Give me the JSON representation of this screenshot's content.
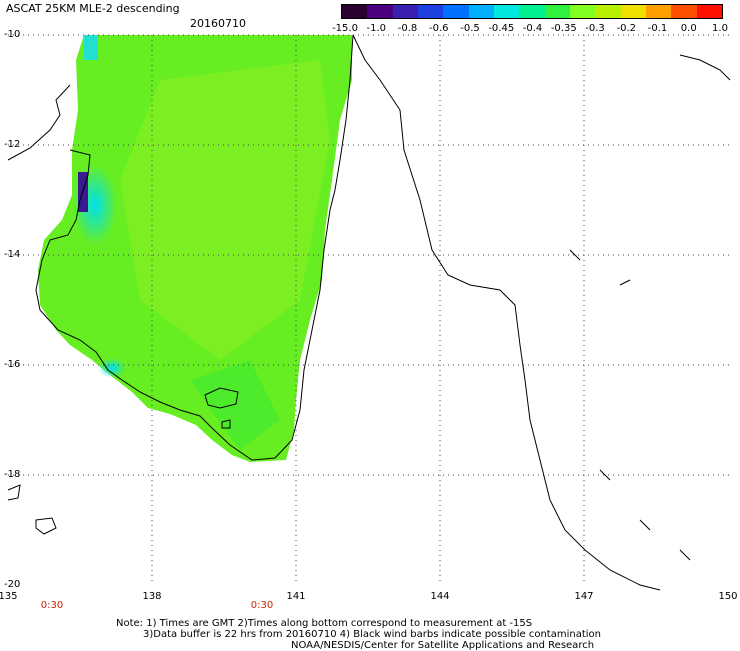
{
  "header": {
    "title": "ASCAT 25KM MLE-2 descending",
    "date": "20160710"
  },
  "colorbar": {
    "labels": [
      "-15.0",
      "-1.0",
      "-0.8",
      "-0.6",
      "-0.5",
      "-0.45",
      "-0.4",
      "-0.35",
      "-0.3",
      "-0.2",
      "-0.1",
      "0.0",
      "1.0"
    ],
    "colors": [
      "#2a0030",
      "#4b0082",
      "#3a1fb0",
      "#1e40e0",
      "#0070ff",
      "#00b0ff",
      "#00e8e0",
      "#00f090",
      "#30f040",
      "#80ff20",
      "#b8f000",
      "#f0e000",
      "#ffa000",
      "#ff5000",
      "#ff1000"
    ]
  },
  "map": {
    "lat_labels": [
      "-10",
      "-12",
      "-14",
      "-16",
      "-18",
      "-20"
    ],
    "lon_labels": [
      "135",
      "138",
      "141",
      "144",
      "147",
      "150"
    ],
    "time_labels": [
      "0:30",
      "0:30"
    ]
  },
  "footer": {
    "note1": "Note: 1) Times are GMT 2)Times along bottom correspond to measurement at -15S",
    "note2": "3)Data buffer is 22 hrs from 20160710 4) Black wind barbs indicate possible contamination",
    "credit": "NOAA/NESDIS/Center for Satellite Applications and Research"
  }
}
